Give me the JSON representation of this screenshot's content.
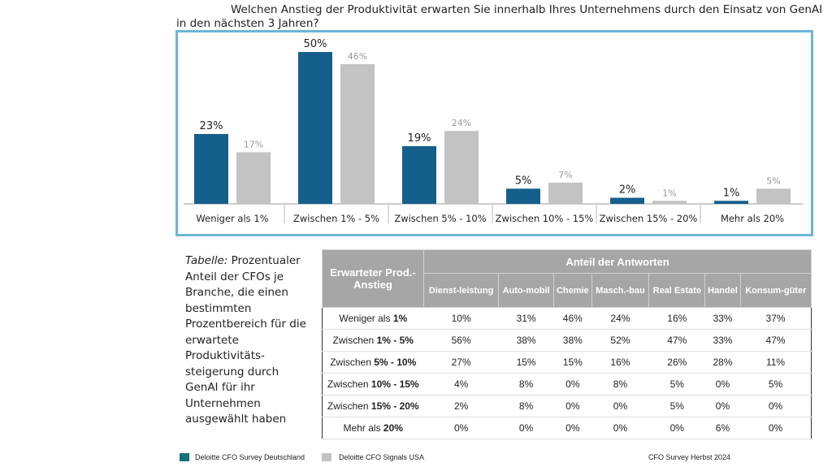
{
  "question": "Welchen Anstieg der Produktivität erwarten Sie innerhalb Ihres Unternehmens durch den Einsatz von GenAI in den nächsten 3 Jahren?",
  "colors": {
    "germany": "#155f8c",
    "usa": "#c3c3c3",
    "legend_germany": "#17707a",
    "frame": "#6bb6d6"
  },
  "chart_data": {
    "type": "bar",
    "categories": [
      "Weniger als 1%",
      "Zwischen 1% - 5%",
      "Zwischen 5% - 10%",
      "Zwischen 10% - 15%",
      "Zwischen 15% - 20%",
      "Mehr als 20%"
    ],
    "series": [
      {
        "name": "Deloitte CFO Survey Deutschland",
        "values": [
          23,
          50,
          19,
          5,
          2,
          1
        ],
        "labels": [
          "23%",
          "50%",
          "19%",
          "5%",
          "2%",
          "1%"
        ]
      },
      {
        "name": "Deloitte CFO Signals USA",
        "values": [
          17,
          46,
          24,
          7,
          1,
          5
        ],
        "labels": [
          "17%",
          "46%",
          "24%",
          "7%",
          "1%",
          "5%"
        ]
      }
    ],
    "ylim": [
      0,
      50
    ],
    "grid": false,
    "legend": "bottom-left"
  },
  "caption": {
    "italic": "Tabelle:",
    "text": " Prozentualer Anteil der CFOs je Branche, die einen bestimmten Prozentbereich für die erwartete Produktivitäts-steigerung durch GenAI für ihr Unternehmen ausgewählt haben"
  },
  "table": {
    "row_header": "Erwarteter Prod.-Anstieg",
    "group_header": "Anteil der Antworten",
    "columns": [
      "Dienst-leistung",
      "Auto-mobil",
      "Chemie",
      "Masch.-bau",
      "Real Estate",
      "Handel",
      "Konsum-güter"
    ],
    "rows": [
      {
        "prefix": "Weniger als ",
        "bold": "1%",
        "values": [
          "10%",
          "31%",
          "46%",
          "24%",
          "16%",
          "33%",
          "37%"
        ]
      },
      {
        "prefix": "Zwischen ",
        "bold": "1% - 5%",
        "values": [
          "56%",
          "38%",
          "38%",
          "52%",
          "47%",
          "33%",
          "47%"
        ]
      },
      {
        "prefix": "Zwischen ",
        "bold": "5% - 10%",
        "values": [
          "27%",
          "15%",
          "15%",
          "16%",
          "26%",
          "28%",
          "11%"
        ]
      },
      {
        "prefix": "Zwischen ",
        "bold": "10% - 15%",
        "values": [
          "4%",
          "8%",
          "0%",
          "8%",
          "5%",
          "0%",
          "5%"
        ]
      },
      {
        "prefix": "Zwischen ",
        "bold": "15% - 20%",
        "values": [
          "2%",
          "8%",
          "0%",
          "0%",
          "5%",
          "0%",
          "0%"
        ]
      },
      {
        "prefix": "Mehr als ",
        "bold": "20%",
        "values": [
          "0%",
          "0%",
          "0%",
          "0%",
          "0%",
          "6%",
          "0%"
        ]
      }
    ]
  },
  "footer": {
    "legend_de": "Deloitte CFO Survey Deutschland",
    "legend_us": "Deloitte CFO Signals USA",
    "source": "CFO Survey Herbst 2024"
  }
}
